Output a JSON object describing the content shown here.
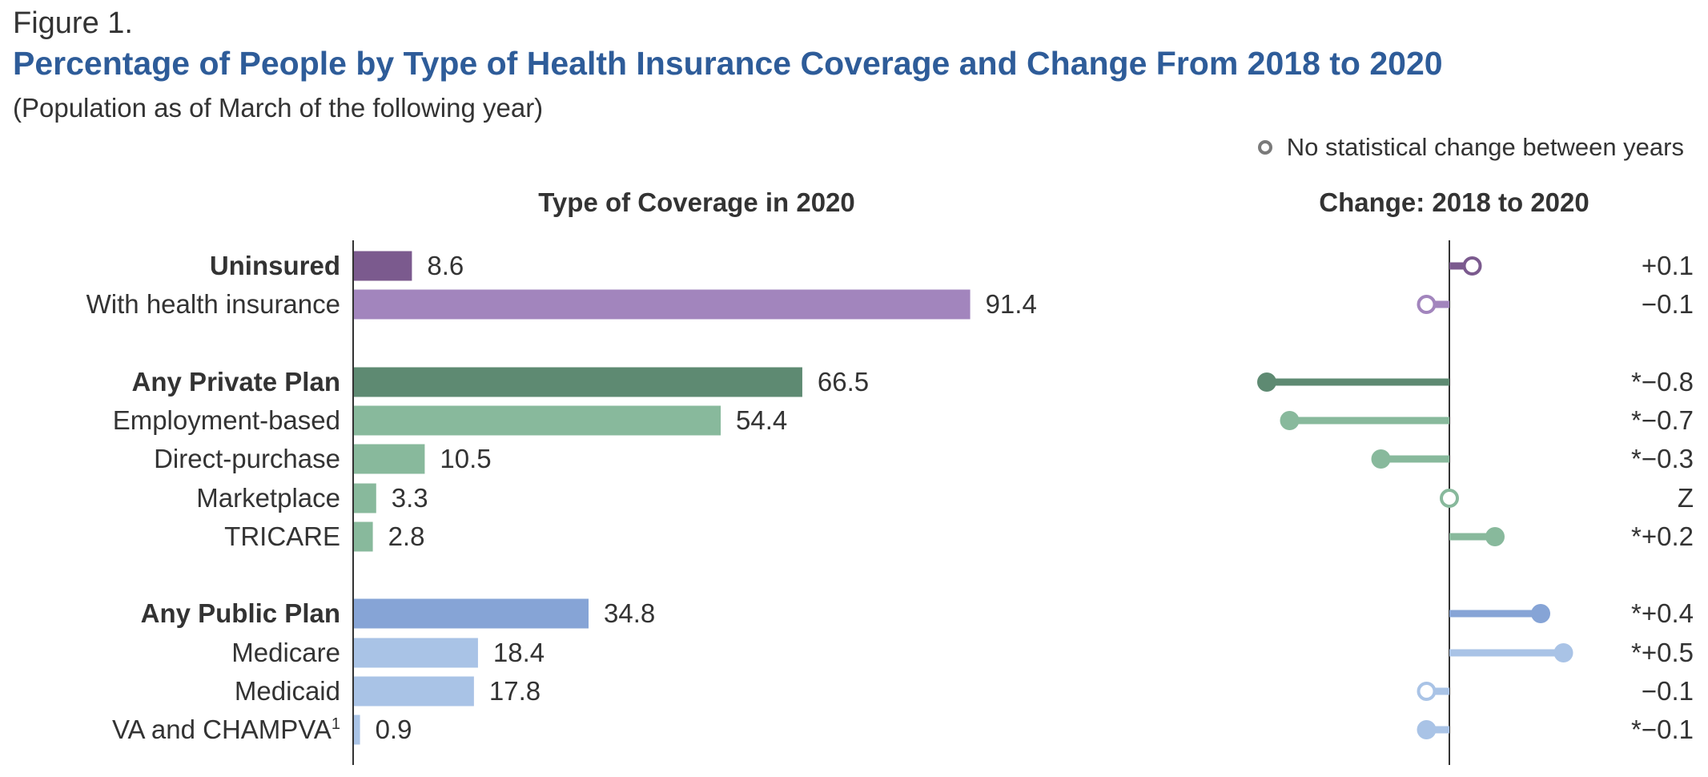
{
  "figure_label": "Figure 1.",
  "title": "Percentage of People by Type of Health Insurance Coverage and Change From 2018 to 2020",
  "subtitle": "(Population as of March of the following year)",
  "legend": {
    "label": "No statistical change between years",
    "marker": "hollow-circle"
  },
  "chart_data": {
    "type": "bar",
    "panels": [
      {
        "title": "Type of Coverage in 2020",
        "type": "bar",
        "xlim": [
          0,
          100
        ]
      },
      {
        "title": "Change: 2018 to 2020",
        "type": "dot-plot",
        "xlim": [
          -0.8,
          0.5
        ]
      }
    ],
    "rows": [
      {
        "label": "Uninsured",
        "bold": true,
        "value": 8.6,
        "value_label": "8.6",
        "change": 0.1,
        "change_label": "+0.1",
        "significant": false,
        "color": "#7b5a8e",
        "group": "uninsured"
      },
      {
        "label": "With health insurance",
        "bold": false,
        "value": 91.4,
        "value_label": "91.4",
        "change": -0.1,
        "change_label": "−0.1",
        "significant": false,
        "color": "#a285bd",
        "group": "uninsured"
      },
      {
        "label": "Any Private Plan",
        "bold": true,
        "value": 66.5,
        "value_label": "66.5",
        "change": -0.8,
        "change_label": "*−0.8",
        "significant": true,
        "color": "#5e8a72",
        "group": "private"
      },
      {
        "label": "Employment-based",
        "bold": false,
        "value": 54.4,
        "value_label": "54.4",
        "change": -0.7,
        "change_label": "*−0.7",
        "significant": true,
        "color": "#88b99c",
        "group": "private"
      },
      {
        "label": "Direct-purchase",
        "bold": false,
        "value": 10.5,
        "value_label": "10.5",
        "change": -0.3,
        "change_label": "*−0.3",
        "significant": true,
        "color": "#88b99c",
        "group": "private"
      },
      {
        "label": "Marketplace",
        "bold": false,
        "value": 3.3,
        "value_label": "3.3",
        "change": 0,
        "change_label": "Z",
        "significant": false,
        "color": "#88b99c",
        "group": "private"
      },
      {
        "label": "TRICARE",
        "bold": false,
        "value": 2.8,
        "value_label": "2.8",
        "change": 0.2,
        "change_label": "*+0.2",
        "significant": true,
        "color": "#88b99c",
        "group": "private"
      },
      {
        "label": "Any Public Plan",
        "bold": true,
        "value": 34.8,
        "value_label": "34.8",
        "change": 0.4,
        "change_label": "*+0.4",
        "significant": true,
        "color": "#86a4d6",
        "group": "public"
      },
      {
        "label": "Medicare",
        "bold": false,
        "value": 18.4,
        "value_label": "18.4",
        "change": 0.5,
        "change_label": "*+0.5",
        "significant": true,
        "color": "#a9c3e6",
        "group": "public"
      },
      {
        "label": "Medicaid",
        "bold": false,
        "value": 17.8,
        "value_label": "17.8",
        "change": -0.1,
        "change_label": "−0.1",
        "significant": false,
        "color": "#a9c3e6",
        "group": "public"
      },
      {
        "label": "VA and CHAMPVA",
        "footnote": "1",
        "bold": false,
        "value": 0.9,
        "value_label": "0.9",
        "change": -0.1,
        "change_label": "*−0.1",
        "significant": true,
        "color": "#a9c3e6",
        "group": "public"
      }
    ]
  }
}
